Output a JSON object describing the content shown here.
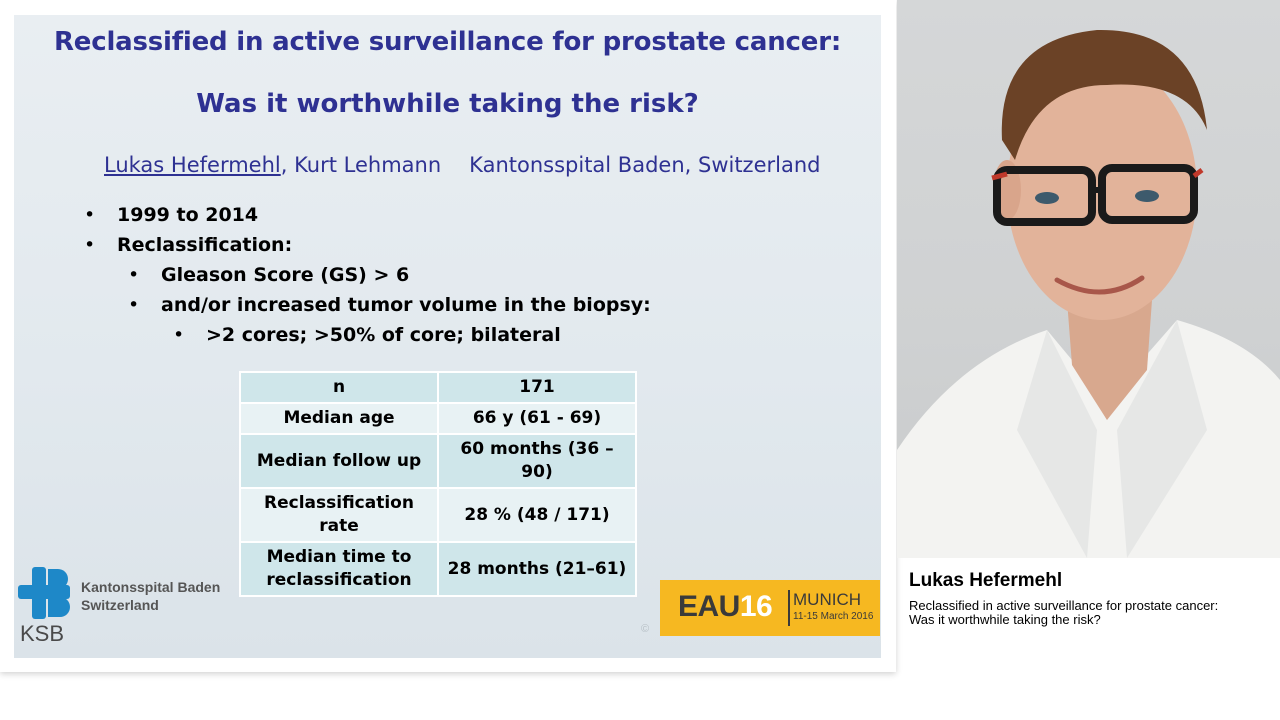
{
  "slide": {
    "title_line1": "Reclassified in active surveillance for prostate cancer:",
    "title_line2": "Was it worthwhile taking the risk?",
    "author_primary": "Lukas Hefermehl",
    "author_secondary": ", Kurt Lehmann",
    "institution": "Kantonsspital Baden, Switzerland",
    "bullets": [
      {
        "level": 1,
        "text": "1999 to 2014"
      },
      {
        "level": 1,
        "text": "Reclassification:"
      },
      {
        "level": 2,
        "text": "Gleason Score (GS) > 6"
      },
      {
        "level": 2,
        "text": "and/or increased tumor volume in the biopsy:"
      },
      {
        "level": 3,
        "text": ">2 cores; >50% of core; bilateral"
      }
    ],
    "table": [
      [
        "n",
        "171"
      ],
      [
        "Median age",
        "66 y (61 - 69)"
      ],
      [
        "Median follow up",
        "60 months (36 – 90)"
      ],
      [
        "Reclassification rate",
        "28 % (48 / 171)"
      ],
      [
        "Median time to reclassification",
        "28 months (21–61)"
      ]
    ],
    "logo": {
      "abbr": "KSB",
      "org_line1": "Kantonsspital Baden",
      "org_line2": "Switzerland"
    },
    "event": {
      "name": "EAU",
      "number": "16",
      "city": "MUNICH",
      "dates": "11-15 March 2016"
    },
    "copyright": "©"
  },
  "speaker": {
    "name": "Lukas Hefermehl",
    "talk_line1": "Reclassified in active surveillance for prostate cancer:",
    "talk_line2": "Was it worthwhile taking the risk?"
  },
  "colors": {
    "title": "#2e3192",
    "eau_yellow": "#f6b821",
    "ksb_blue": "#1e88c8",
    "table_dark": "#cfe6ea",
    "table_light": "#e8f2f4"
  }
}
